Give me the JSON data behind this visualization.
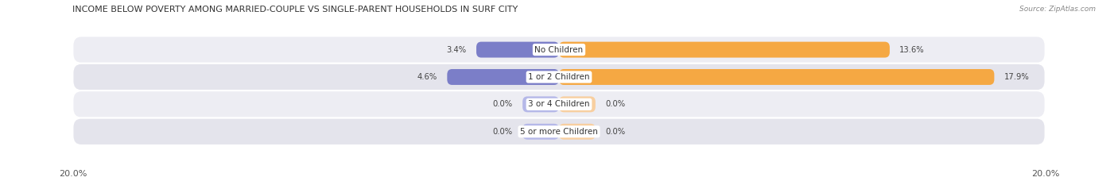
{
  "title": "INCOME BELOW POVERTY AMONG MARRIED-COUPLE VS SINGLE-PARENT HOUSEHOLDS IN SURF CITY",
  "source": "Source: ZipAtlas.com",
  "categories": [
    "No Children",
    "1 or 2 Children",
    "3 or 4 Children",
    "5 or more Children"
  ],
  "married_values": [
    3.4,
    4.6,
    0.0,
    0.0
  ],
  "single_values": [
    13.6,
    17.9,
    0.0,
    0.0
  ],
  "married_color": "#7b7ec8",
  "single_color": "#f5a843",
  "married_color_light": "#b5b8e8",
  "single_color_light": "#f8cfa0",
  "row_bg_even": "#ededf3",
  "row_bg_odd": "#e4e4ec",
  "xlim": 20.0,
  "category_fontsize": 7.5,
  "title_fontsize": 8.0,
  "legend_fontsize": 7.5,
  "value_fontsize": 7.2,
  "axis_label_fontsize": 8.0,
  "min_bar_width": 1.5
}
